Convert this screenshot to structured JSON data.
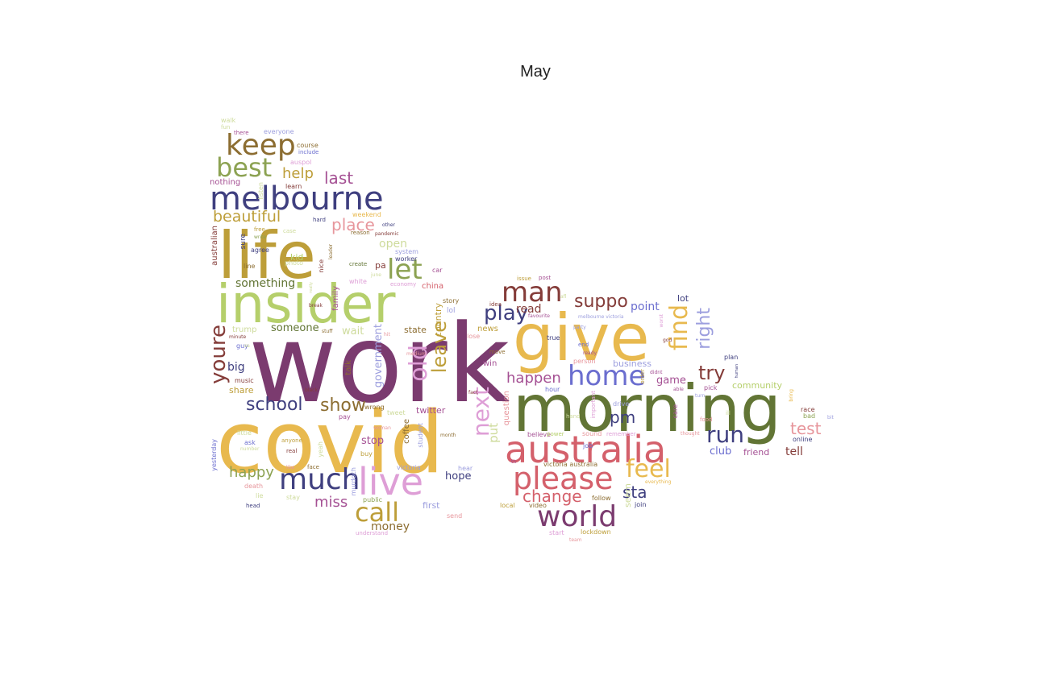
{
  "title": "May",
  "colors": {
    "purple": "#7b3b6f",
    "gold": "#e8b94e",
    "olive": "#627535",
    "red": "#d4606b",
    "navy": "#3f3f7f",
    "lightgreen": "#b5cf6b",
    "brown": "#8c6d31",
    "pink": "#de9ed6",
    "periwinkle": "#6b6ecf",
    "tan": "#bd9e39",
    "salmon": "#e7969c",
    "sage": "#8ca252",
    "maroon": "#843c39",
    "lavender": "#9c9ede",
    "mauve": "#a55194",
    "khaki": "#cedb9c"
  },
  "words": [
    {
      "text": "work",
      "color": "purple"
    },
    {
      "text": "covid",
      "color": "gold"
    },
    {
      "text": "morning",
      "color": "olive"
    },
    {
      "text": "give",
      "color": "gold"
    },
    {
      "text": "insider",
      "color": "lightgreen"
    },
    {
      "text": "life",
      "color": "tan"
    },
    {
      "text": "australia",
      "color": "red"
    },
    {
      "text": "melbourne",
      "color": "navy"
    },
    {
      "text": "live",
      "color": "pink"
    },
    {
      "text": "please",
      "color": "red"
    },
    {
      "text": "much",
      "color": "navy"
    },
    {
      "text": "world",
      "color": "purple"
    },
    {
      "text": "home",
      "color": "periwinkle"
    },
    {
      "text": "keep",
      "color": "brown"
    },
    {
      "text": "best",
      "color": "sage"
    },
    {
      "text": "man",
      "color": "maroon"
    },
    {
      "text": "youre",
      "color": "maroon"
    },
    {
      "text": "call",
      "color": "tan"
    },
    {
      "text": "find",
      "color": "gold"
    },
    {
      "text": "let",
      "color": "sage"
    },
    {
      "text": "next",
      "color": "pink"
    },
    {
      "text": "old",
      "color": "pink"
    },
    {
      "text": "feel",
      "color": "gold"
    },
    {
      "text": "run",
      "color": "navy"
    },
    {
      "text": "leave",
      "color": "tan"
    },
    {
      "text": "play",
      "color": "navy"
    },
    {
      "text": "suppo",
      "color": "maroon"
    },
    {
      "text": "try",
      "color": "maroon"
    },
    {
      "text": "right",
      "color": "lavender"
    },
    {
      "text": "school",
      "color": "navy"
    },
    {
      "text": "show",
      "color": "brown"
    },
    {
      "text": "change",
      "color": "red"
    },
    {
      "text": "place",
      "color": "salmon"
    },
    {
      "text": "last",
      "color": "mauve"
    },
    {
      "text": "test",
      "color": "salmon"
    },
    {
      "text": "beautiful",
      "color": "tan"
    },
    {
      "text": "help",
      "color": "tan"
    },
    {
      "text": "happen",
      "color": "mauve"
    },
    {
      "text": "sta",
      "color": "navy"
    },
    {
      "text": "pm",
      "color": "navy"
    },
    {
      "text": "happy",
      "color": "sage"
    },
    {
      "text": "miss",
      "color": "mauve"
    },
    {
      "text": "put",
      "color": "khaki"
    },
    {
      "text": "government",
      "color": "lavender"
    },
    {
      "text": "seem",
      "color": "khaki"
    },
    {
      "text": "something",
      "color": "olive"
    },
    {
      "text": "money",
      "color": "brown"
    },
    {
      "text": "read",
      "color": "maroon"
    },
    {
      "text": "point",
      "color": "periwinkle"
    },
    {
      "text": "tell",
      "color": "maroon"
    },
    {
      "text": "open",
      "color": "khaki"
    },
    {
      "text": "big",
      "color": "navy"
    },
    {
      "text": "someone",
      "color": "olive"
    },
    {
      "text": "wait",
      "color": "khaki"
    },
    {
      "text": "hope",
      "color": "navy"
    },
    {
      "text": "game",
      "color": "mauve"
    },
    {
      "text": "stop",
      "color": "mauve"
    },
    {
      "text": "club",
      "color": "periwinkle"
    },
    {
      "text": "twitter",
      "color": "mauve"
    },
    {
      "text": "country",
      "color": "tan"
    },
    {
      "text": "state",
      "color": "brown"
    },
    {
      "text": "business",
      "color": "lavender"
    },
    {
      "text": "first",
      "color": "lavender"
    },
    {
      "text": "friend",
      "color": "mauve"
    },
    {
      "text": "community",
      "color": "lightgreen"
    },
    {
      "text": "share",
      "color": "tan"
    },
    {
      "text": "lot",
      "color": "navy"
    },
    {
      "text": "kid",
      "color": "lightgreen"
    },
    {
      "text": "trump",
      "color": "khaki"
    },
    {
      "text": "question",
      "color": "salmon"
    },
    {
      "text": "family",
      "color": "mauve"
    },
    {
      "text": "china",
      "color": "red"
    },
    {
      "text": "talk",
      "color": "brown"
    },
    {
      "text": "news",
      "color": "tan"
    },
    {
      "text": "win",
      "color": "mauve"
    },
    {
      "text": "coffee",
      "color": "brown"
    },
    {
      "text": "pa",
      "color": "maroon"
    },
    {
      "text": "australian",
      "color": "maroon"
    },
    {
      "text": "sure",
      "color": "navy"
    },
    {
      "text": "nothing",
      "color": "mauve"
    },
    {
      "text": "course",
      "color": "brown"
    },
    {
      "text": "include",
      "color": "periwinkle"
    },
    {
      "text": "auspol",
      "color": "pink"
    },
    {
      "text": "everyone",
      "color": "lavender"
    },
    {
      "text": "walk",
      "color": "khaki"
    },
    {
      "text": "fun",
      "color": "khaki"
    },
    {
      "text": "there",
      "color": "mauve"
    },
    {
      "text": "learn",
      "color": "maroon"
    },
    {
      "text": "listen",
      "color": "khaki"
    },
    {
      "text": "hard",
      "color": "navy"
    },
    {
      "text": "weekend",
      "color": "gold"
    },
    {
      "text": "other",
      "color": "navy"
    },
    {
      "text": "pandemic",
      "color": "maroon"
    },
    {
      "text": "reason",
      "color": "brown"
    },
    {
      "text": "free",
      "color": "tan"
    },
    {
      "text": "case",
      "color": "khaki"
    },
    {
      "text": "write",
      "color": "sage"
    },
    {
      "text": "system",
      "color": "lavender"
    },
    {
      "text": "worker",
      "color": "navy"
    },
    {
      "text": "agree",
      "color": "navy"
    },
    {
      "text": "photo",
      "color": "khaki"
    },
    {
      "text": "line",
      "color": "brown"
    },
    {
      "text": "nice",
      "color": "maroon"
    },
    {
      "text": "leader",
      "color": "brown"
    },
    {
      "text": "create",
      "color": "olive"
    },
    {
      "text": "june",
      "color": "khaki"
    },
    {
      "text": "car",
      "color": "mauve"
    },
    {
      "text": "white",
      "color": "pink"
    },
    {
      "text": "economy",
      "color": "pink"
    },
    {
      "text": "break",
      "color": "maroon"
    },
    {
      "text": "minute",
      "color": "maroon"
    },
    {
      "text": "stuff",
      "color": "brown"
    },
    {
      "text": "guy",
      "color": "periwinkle"
    },
    {
      "text": "music",
      "color": "maroon"
    },
    {
      "text": "black",
      "color": "maroon"
    },
    {
      "text": "lol",
      "color": "lavender"
    },
    {
      "text": "story",
      "color": "brown"
    },
    {
      "text": "lose",
      "color": "salmon"
    },
    {
      "text": "idea",
      "color": "maroon"
    },
    {
      "text": "issue",
      "color": "tan"
    },
    {
      "text": "post",
      "color": "mauve"
    },
    {
      "text": "afl",
      "color": "khaki"
    },
    {
      "text": "favourite",
      "color": "mauve"
    },
    {
      "text": "melbourne victoria",
      "color": "lavender"
    },
    {
      "text": "party",
      "color": "lavender"
    },
    {
      "text": "true",
      "color": "navy"
    },
    {
      "text": "end",
      "color": "periwinkle"
    },
    {
      "text": "ready",
      "color": "mauve"
    },
    {
      "text": "move",
      "color": "brown"
    },
    {
      "text": "person",
      "color": "salmon"
    },
    {
      "text": "fact",
      "color": "maroon"
    },
    {
      "text": "tweet",
      "color": "khaki"
    },
    {
      "text": "wrong",
      "color": "brown"
    },
    {
      "text": "pay",
      "color": "mauve"
    },
    {
      "text": "little",
      "color": "khaki"
    },
    {
      "text": "ask",
      "color": "periwinkle"
    },
    {
      "text": "anyone",
      "color": "tan"
    },
    {
      "text": "number",
      "color": "khaki"
    },
    {
      "text": "real",
      "color": "maroon"
    },
    {
      "text": "yeah",
      "color": "khaki"
    },
    {
      "text": "buy",
      "color": "tan"
    },
    {
      "text": "victoria",
      "color": "lavender"
    },
    {
      "text": "murdoch",
      "color": "lavender"
    },
    {
      "text": "student",
      "color": "lavender"
    },
    {
      "text": "month",
      "color": "brown"
    },
    {
      "text": "woman",
      "color": "salmon"
    },
    {
      "text": "medium",
      "color": "salmon"
    },
    {
      "text": "hit",
      "color": "salmon"
    },
    {
      "text": "lie",
      "color": "khaki"
    },
    {
      "text": "stay",
      "color": "khaki"
    },
    {
      "text": "face",
      "color": "brown"
    },
    {
      "text": "like",
      "color": "salmon"
    },
    {
      "text": "death",
      "color": "salmon"
    },
    {
      "text": "public",
      "color": "sage"
    },
    {
      "text": "head",
      "color": "navy"
    },
    {
      "text": "understand",
      "color": "pink"
    },
    {
      "text": "send",
      "color": "salmon"
    },
    {
      "text": "hear",
      "color": "lavender"
    },
    {
      "text": "yesterday",
      "color": "periwinkle"
    },
    {
      "text": "local",
      "color": "tan"
    },
    {
      "text": "video",
      "color": "brown"
    },
    {
      "text": "th",
      "color": "mauve"
    },
    {
      "text": "hand",
      "color": "khaki"
    },
    {
      "text": "believe",
      "color": "mauve"
    },
    {
      "text": "sound",
      "color": "salmon"
    },
    {
      "text": "job",
      "color": "periwinkle"
    },
    {
      "text": "important",
      "color": "pink"
    },
    {
      "text": "remember",
      "color": "pink"
    },
    {
      "text": "drive",
      "color": "lavender"
    },
    {
      "text": "order",
      "color": "tan"
    },
    {
      "text": "didnt",
      "color": "mauve"
    },
    {
      "text": "hour",
      "color": "periwinkle"
    },
    {
      "text": "victoria australia",
      "color": "brown"
    },
    {
      "text": "start",
      "color": "pink"
    },
    {
      "text": "lockdown",
      "color": "tan"
    },
    {
      "text": "team",
      "color": "salmon"
    },
    {
      "text": "follow",
      "color": "brown"
    },
    {
      "text": "join",
      "color": "navy"
    },
    {
      "text": "care",
      "color": "mauve"
    },
    {
      "text": "everything",
      "color": "gold"
    },
    {
      "text": "thought",
      "color": "salmon"
    },
    {
      "text": "food",
      "color": "salmon"
    },
    {
      "text": "ill",
      "color": "khaki"
    },
    {
      "text": "pick",
      "color": "mauve"
    },
    {
      "text": "turn",
      "color": "lavender"
    },
    {
      "text": "able",
      "color": "mauve"
    },
    {
      "text": "god",
      "color": "maroon"
    },
    {
      "text": "worst",
      "color": "pink"
    },
    {
      "text": "plan",
      "color": "navy"
    },
    {
      "text": "human",
      "color": "navy"
    },
    {
      "text": "power",
      "color": "lightgreen"
    },
    {
      "text": "bring",
      "color": "gold"
    },
    {
      "text": "race",
      "color": "maroon"
    },
    {
      "text": "bad",
      "color": "sage"
    },
    {
      "text": "online",
      "color": "navy"
    },
    {
      "text": "bit",
      "color": "lavender"
    },
    {
      "text": "really",
      "color": "khaki"
    },
    {
      "text": "sa",
      "color": "khaki"
    }
  ]
}
